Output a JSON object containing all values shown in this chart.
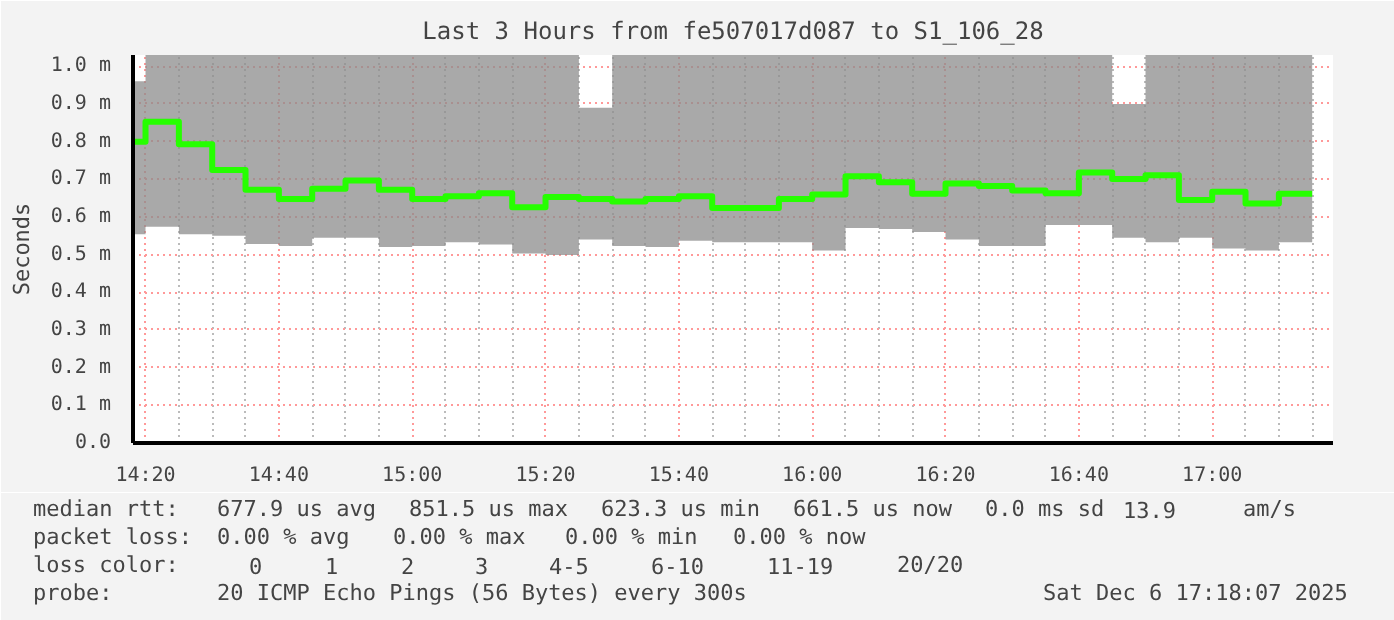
{
  "chart_data": {
    "type": "step",
    "title": "Last 3 Hours from fe507017d087 to S1_106_28",
    "ylabel": "Seconds",
    "annotations": [
      "median rtt:",
      "677.9 us avg",
      "851.5 us max",
      "623.3 us min",
      "661.5 us now",
      "0.0 ms sd",
      "13.9",
      "am/s",
      "packet loss:",
      "0.00 % avg",
      "0.00 % max",
      "0.00 % min",
      "0.00 % now",
      "loss color:",
      "0",
      "1",
      "2",
      "3",
      "4-5",
      "6-10",
      "11-19",
      "20/20",
      "probe:",
      "20 ICMP Echo Pings (56 Bytes) every 300s",
      "Sat Dec  6 17:18:07 2025"
    ],
    "x": [
      14.302,
      14.3333,
      14.4167,
      14.5,
      14.5833,
      14.6667,
      14.75,
      14.8333,
      14.9167,
      15.0,
      15.0833,
      15.1667,
      15.25,
      15.3333,
      15.4167,
      15.5,
      15.5833,
      15.6667,
      15.75,
      15.8333,
      15.9167,
      16.0,
      16.0833,
      16.1667,
      16.25,
      16.3333,
      16.4167,
      16.5,
      16.5833,
      16.6667,
      16.75,
      16.8333,
      16.9167,
      17.0,
      17.0833,
      17.1667,
      17.25
    ],
    "series": [
      {
        "color": "#26ff00",
        "values": [
          0.8,
          0.853,
          0.793,
          0.725,
          0.672,
          0.648,
          0.675,
          0.697,
          0.672,
          0.648,
          0.655,
          0.663,
          0.626,
          0.653,
          0.648,
          0.641,
          0.648,
          0.655,
          0.624,
          0.624,
          0.648,
          0.66,
          0.708,
          0.692,
          0.662,
          0.689,
          0.682,
          0.67,
          0.663,
          0.718,
          0.701,
          0.711,
          0.645,
          0.667,
          0.636,
          0.662,
          0.662
        ],
        "lower": [
          0.554,
          0.574,
          0.554,
          0.55,
          0.528,
          0.523,
          0.545,
          0.545,
          0.52,
          0.523,
          0.533,
          0.527,
          0.503,
          0.499,
          0.54,
          0.523,
          0.52,
          0.537,
          0.533,
          0.533,
          0.533,
          0.511,
          0.571,
          0.568,
          0.56,
          0.54,
          0.523,
          0.523,
          0.579,
          0.579,
          0.545,
          0.533,
          0.545,
          0.516,
          0.511,
          0.533,
          0.533
        ],
        "upper": [
          0.96,
          1.03,
          1.03,
          1.03,
          1.03,
          1.03,
          1.03,
          1.03,
          1.03,
          1.03,
          1.03,
          1.03,
          1.03,
          1.03,
          0.89,
          1.03,
          1.03,
          1.03,
          1.03,
          1.03,
          1.03,
          1.03,
          1.03,
          1.03,
          1.03,
          1.03,
          1.03,
          1.03,
          1.03,
          1.03,
          0.9,
          1.03,
          1.03,
          1.03,
          1.03,
          1.03,
          1.03
        ]
      }
    ],
    "xlim": [
      14.302,
      17.302
    ],
    "ylim": [
      0,
      1.03
    ],
    "xticks": [
      {
        "value": 14.3333,
        "label": "14:20"
      },
      {
        "value": 14.6667,
        "label": "14:40"
      },
      {
        "value": 15.0,
        "label": "15:00"
      },
      {
        "value": 15.3333,
        "label": "15:20"
      },
      {
        "value": 15.6667,
        "label": "15:40"
      },
      {
        "value": 16.0,
        "label": "16:00"
      },
      {
        "value": 16.3333,
        "label": "16:20"
      },
      {
        "value": 16.6667,
        "label": "16:40"
      },
      {
        "value": 17.0,
        "label": "17:00"
      }
    ],
    "yticks": [
      {
        "value": 0,
        "label": "0.0"
      },
      {
        "value": 0.1,
        "label": "0.1 m"
      },
      {
        "value": 0.2,
        "label": "0.2 m"
      },
      {
        "value": 0.3,
        "label": "0.3 m"
      },
      {
        "value": 0.4,
        "label": "0.4 m"
      },
      {
        "value": 0.5,
        "label": "0.5 m"
      },
      {
        "value": 0.6,
        "label": "0.6 m"
      },
      {
        "value": 0.7,
        "label": "0.7 m"
      },
      {
        "value": 0.8,
        "label": "0.8 m"
      },
      {
        "value": 0.9,
        "label": "0.9 m"
      },
      {
        "value": 1.0,
        "label": "1.0 m"
      }
    ],
    "grid": true
  }
}
